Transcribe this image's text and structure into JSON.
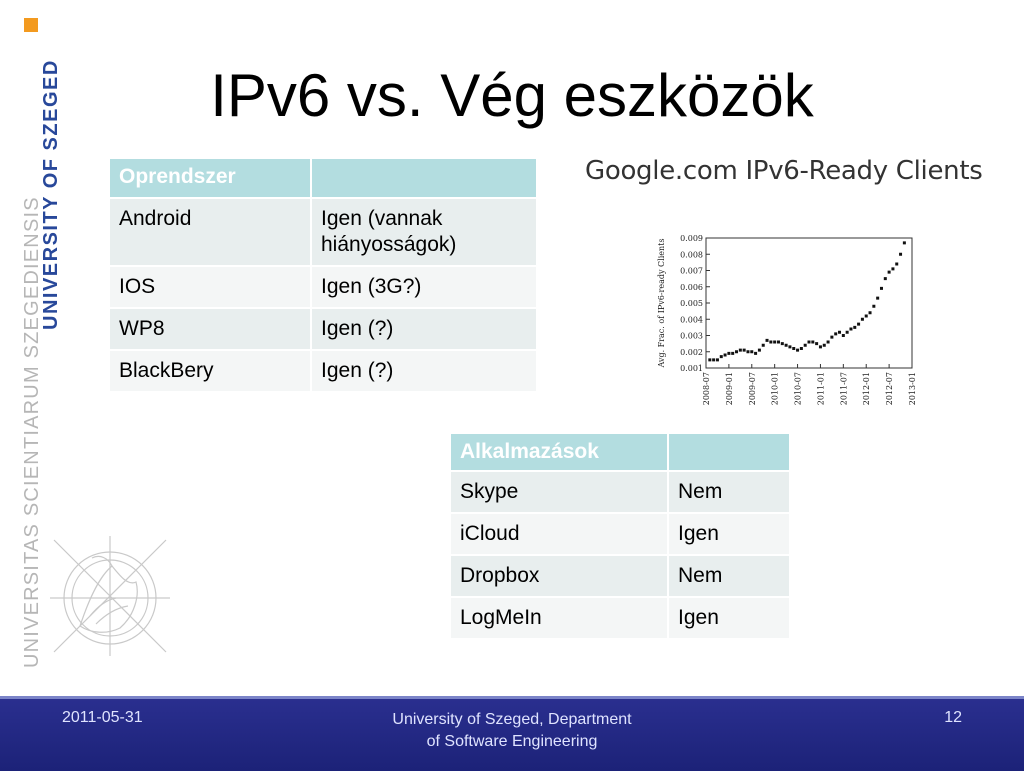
{
  "slide": {
    "title": "IPv6 vs. Vég eszközök",
    "brand_text": "UNIVERSITY OF SZEGED",
    "latin_text": "UNIVERSITAS SCIENTIARUM SZEGEDIENSIS",
    "brand_color": "#28489a",
    "accent_color": "#f39a1f"
  },
  "os_table": {
    "headers": [
      "Oprendszer",
      ""
    ],
    "rows": [
      [
        "Android",
        "Igen (vannak hiányosságok)"
      ],
      [
        "IOS",
        "Igen (3G?)"
      ],
      [
        "WP8",
        "Igen (?)"
      ],
      [
        "BlackBery",
        "Igen (?)"
      ]
    ]
  },
  "app_table": {
    "headers": [
      "Alkalmazások",
      ""
    ],
    "rows": [
      [
        "Skype",
        "Nem"
      ],
      [
        "iCloud",
        "Igen"
      ],
      [
        "Dropbox",
        "Nem"
      ],
      [
        "LogMeIn",
        "Igen"
      ]
    ]
  },
  "chart_data": {
    "type": "scatter",
    "title": "Google.com IPv6-Ready Clients",
    "ylabel": "Avg. Frac. of IPv6-ready Clients",
    "xlabel": "",
    "x_ticks": [
      "2008-07",
      "2009-01",
      "2009-07",
      "2010-01",
      "2010-07",
      "2011-01",
      "2011-07",
      "2012-01",
      "2012-07",
      "2013-01"
    ],
    "y_ticks": [
      "0.001",
      "0.002",
      "0.003",
      "0.004",
      "0.005",
      "0.006",
      "0.007",
      "0.008",
      "0.009"
    ],
    "ylim": [
      0.001,
      0.009
    ],
    "xlim": [
      "2008-07",
      "2013-01"
    ],
    "grid": false,
    "series": [
      {
        "x": [
          "2008-08",
          "2008-09",
          "2008-10",
          "2008-11",
          "2008-12",
          "2009-01",
          "2009-02",
          "2009-03",
          "2009-04",
          "2009-05",
          "2009-06",
          "2009-07",
          "2009-08",
          "2009-09",
          "2009-10",
          "2009-11",
          "2009-12",
          "2010-01",
          "2010-02",
          "2010-03",
          "2010-04",
          "2010-05",
          "2010-06",
          "2010-07",
          "2010-08",
          "2010-09",
          "2010-10",
          "2010-11",
          "2010-12",
          "2011-01",
          "2011-02",
          "2011-03",
          "2011-04",
          "2011-05",
          "2011-06",
          "2011-07",
          "2011-08",
          "2011-09",
          "2011-10",
          "2011-11",
          "2011-12",
          "2012-01",
          "2012-02",
          "2012-03",
          "2012-04",
          "2012-05",
          "2012-06",
          "2012-07",
          "2012-08",
          "2012-09",
          "2012-10",
          "2012-11"
        ],
        "values": [
          0.0015,
          0.0015,
          0.0015,
          0.0017,
          0.0018,
          0.0019,
          0.0019,
          0.002,
          0.0021,
          0.0021,
          0.002,
          0.002,
          0.0019,
          0.0021,
          0.0024,
          0.0027,
          0.0026,
          0.0026,
          0.0026,
          0.0025,
          0.0024,
          0.0023,
          0.0022,
          0.0021,
          0.0022,
          0.0024,
          0.0026,
          0.0026,
          0.0025,
          0.0023,
          0.0024,
          0.0026,
          0.0029,
          0.0031,
          0.0032,
          0.003,
          0.0032,
          0.0034,
          0.0035,
          0.0037,
          0.004,
          0.0042,
          0.0044,
          0.0048,
          0.0053,
          0.0059,
          0.0065,
          0.0069,
          0.0071,
          0.0074,
          0.008,
          0.0087
        ]
      }
    ]
  },
  "footer": {
    "date": "2011-05-31",
    "center_line1": "University of Szeged, Department",
    "center_line2": "of Software Engineering",
    "page": "12",
    "bg_color": "#1c2278"
  }
}
